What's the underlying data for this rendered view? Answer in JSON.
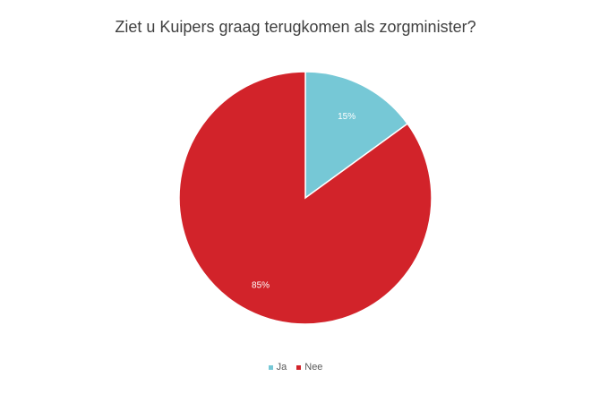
{
  "chart_data": {
    "type": "pie",
    "title": "Ziet u Kuipers graag terugkomen als zorgminister?",
    "categories": [
      "Ja",
      "Nee"
    ],
    "values": [
      15,
      85
    ],
    "data_labels": [
      "15%",
      "85%"
    ],
    "colors": [
      "#76c8d6",
      "#d2232a"
    ],
    "legend_position": "bottom"
  }
}
